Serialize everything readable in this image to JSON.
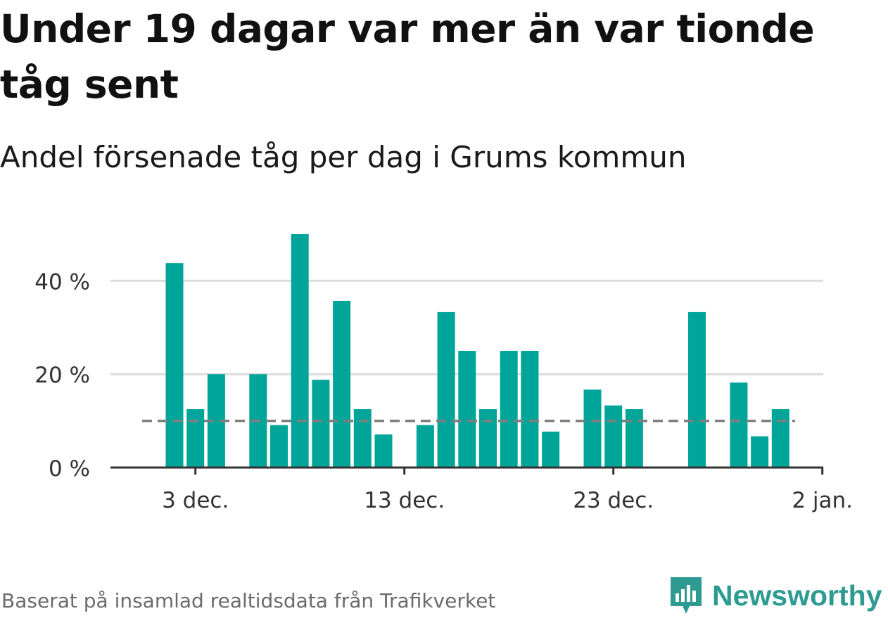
{
  "title": "Under 19 dagar var mer än var tionde tåg sent",
  "subtitle": "Andel försenade tåg per dag i Grums kommun",
  "footer": "Baserat på insamlad realtidsdata från Trafikverket",
  "brand": "Newsworthy",
  "colors": {
    "bar": "#00a59a",
    "reference": "#7f7f7f",
    "grid": "#dcdcdc",
    "axis": "#333333",
    "brand": "#2e9b92"
  },
  "chart_data": {
    "type": "bar",
    "x": [
      "2 dec.",
      "3 dec.",
      "4 dec.",
      "5 dec.",
      "6 dec.",
      "7 dec.",
      "8 dec.",
      "9 dec.",
      "10 dec.",
      "11 dec.",
      "12 dec.",
      "13 dec.",
      "14 dec.",
      "15 dec.",
      "16 dec.",
      "17 dec.",
      "18 dec.",
      "19 dec.",
      "20 dec.",
      "21 dec.",
      "22 dec.",
      "23 dec.",
      "24 dec.",
      "25 dec.",
      "26 dec.",
      "27 dec.",
      "28 dec.",
      "29 dec.",
      "30 dec.",
      "31 dec.",
      "1 jan."
    ],
    "values": [
      43.8,
      12.5,
      20.0,
      null,
      20.0,
      9.1,
      50.0,
      18.8,
      35.7,
      12.5,
      7.1,
      null,
      9.1,
      33.3,
      25.0,
      12.5,
      25.0,
      25.0,
      7.7,
      null,
      16.7,
      13.3,
      12.5,
      null,
      null,
      33.3,
      null,
      18.2,
      6.7,
      12.5,
      null
    ],
    "reference_line": 10,
    "y_ticks": [
      {
        "value": 0,
        "label": "0 %"
      },
      {
        "value": 20,
        "label": "20 %"
      },
      {
        "value": 40,
        "label": "40 %"
      }
    ],
    "x_ticks": [
      {
        "label": "3 dec."
      },
      {
        "label": "13 dec."
      },
      {
        "label": "23 dec."
      },
      {
        "label": "2 jan."
      }
    ],
    "ylim": [
      0,
      50
    ],
    "grid": true,
    "legend": "none"
  }
}
